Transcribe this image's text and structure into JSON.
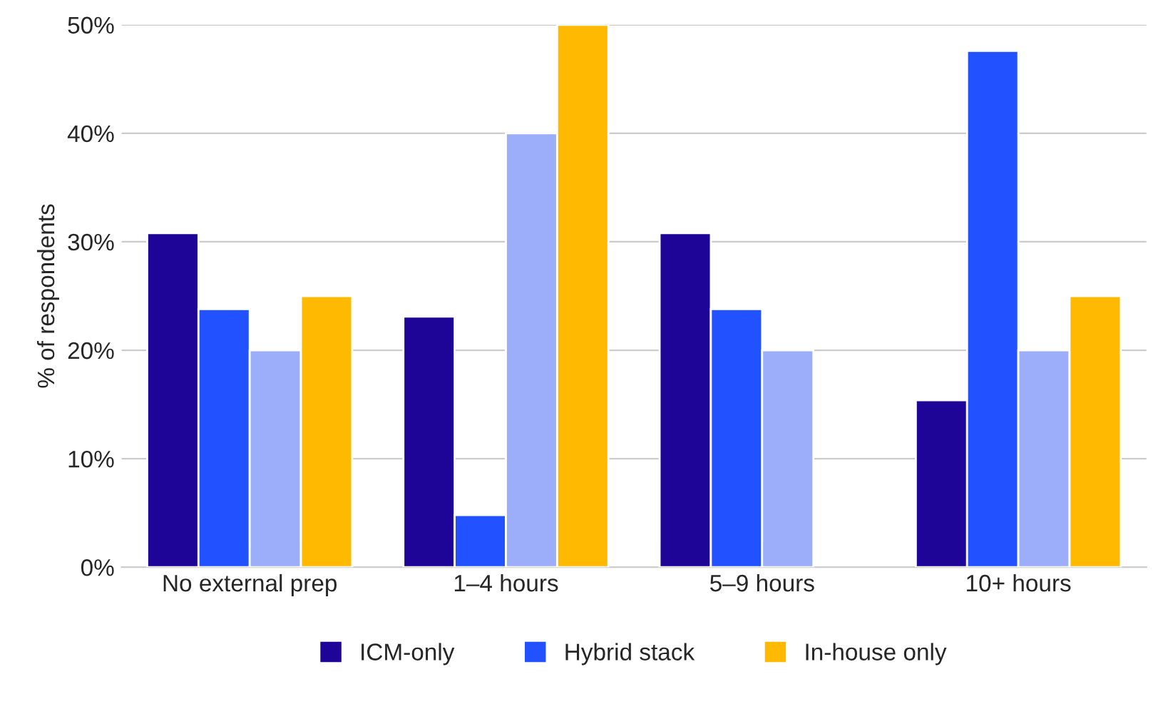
{
  "chart_data": {
    "type": "bar",
    "ylabel": "% of respondents",
    "categories": [
      "No external prep",
      "1–4 hours",
      "5–9 hours",
      "10+ hours"
    ],
    "series": [
      {
        "name": "ICM-only",
        "color": "#1e0598",
        "values": [
          30.8,
          23.1,
          30.8,
          15.4
        ]
      },
      {
        "name": "Hybrid stack",
        "color": "#2252ff",
        "values": [
          23.8,
          4.8,
          23.8,
          47.6
        ]
      },
      {
        "color": "#9cadfa",
        "values": [
          20,
          40,
          20,
          20
        ]
      },
      {
        "name": "In-house only",
        "color": "#ffb900",
        "values": [
          25,
          50,
          null,
          25
        ]
      }
    ],
    "ylim": [
      0,
      50
    ],
    "yticks": [
      {
        "value": 0,
        "label": "0%"
      },
      {
        "value": 10,
        "label": "10%"
      },
      {
        "value": 20,
        "label": "20%"
      },
      {
        "value": 30,
        "label": "30%"
      },
      {
        "value": 40,
        "label": "40%"
      },
      {
        "value": 50,
        "label": "50%"
      }
    ],
    "grid": "y",
    "legend": "bottom"
  }
}
